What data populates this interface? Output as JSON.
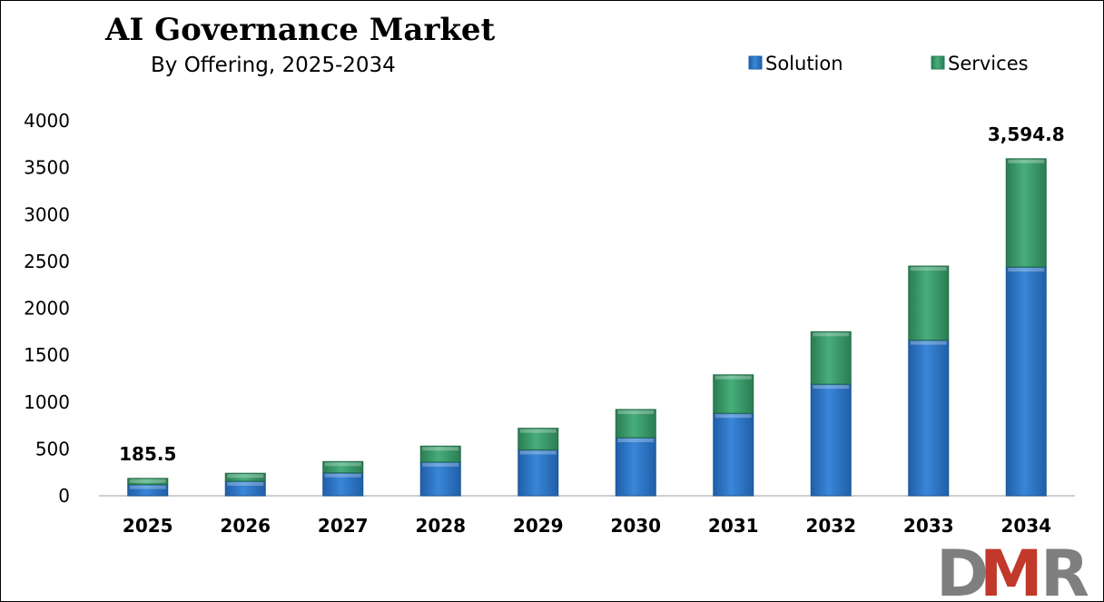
{
  "colors": {
    "solution": "#2e75c8",
    "services": "#3a9a6a",
    "axis": "#bfbfbf",
    "logo_gray": "#7f7f7f",
    "logo_red": "#c0392b"
  },
  "logo": {
    "text": "DMR",
    "letters": [
      "D",
      "M",
      "R"
    ]
  },
  "chart_data": {
    "type": "bar",
    "stacked": true,
    "title": "AI Governance Market",
    "subtitle": "By Offering, 2025-2034",
    "xlabel": "",
    "ylabel": "",
    "categories": [
      "2025",
      "2026",
      "2027",
      "2028",
      "2029",
      "2030",
      "2031",
      "2032",
      "2033",
      "2034"
    ],
    "series": [
      {
        "name": "Solution",
        "color": "#2e75c8",
        "values": [
          120,
          155,
          245,
          360,
          490,
          620,
          880,
          1190,
          1660,
          2440
        ]
      },
      {
        "name": "Services",
        "color": "#3a9a6a",
        "values": [
          65.5,
          85,
          120,
          170,
          230,
          300,
          410,
          560,
          790,
          1154.8
        ]
      }
    ],
    "ylim": [
      0,
      4000
    ],
    "yticks": [
      0,
      500,
      1000,
      1500,
      2000,
      2500,
      3000,
      3500,
      4000
    ],
    "legend_position": "top-right",
    "grid": false,
    "annotations": [
      {
        "category": "2025",
        "text": "185.5"
      },
      {
        "category": "2034",
        "text": "3,594.8"
      }
    ]
  }
}
